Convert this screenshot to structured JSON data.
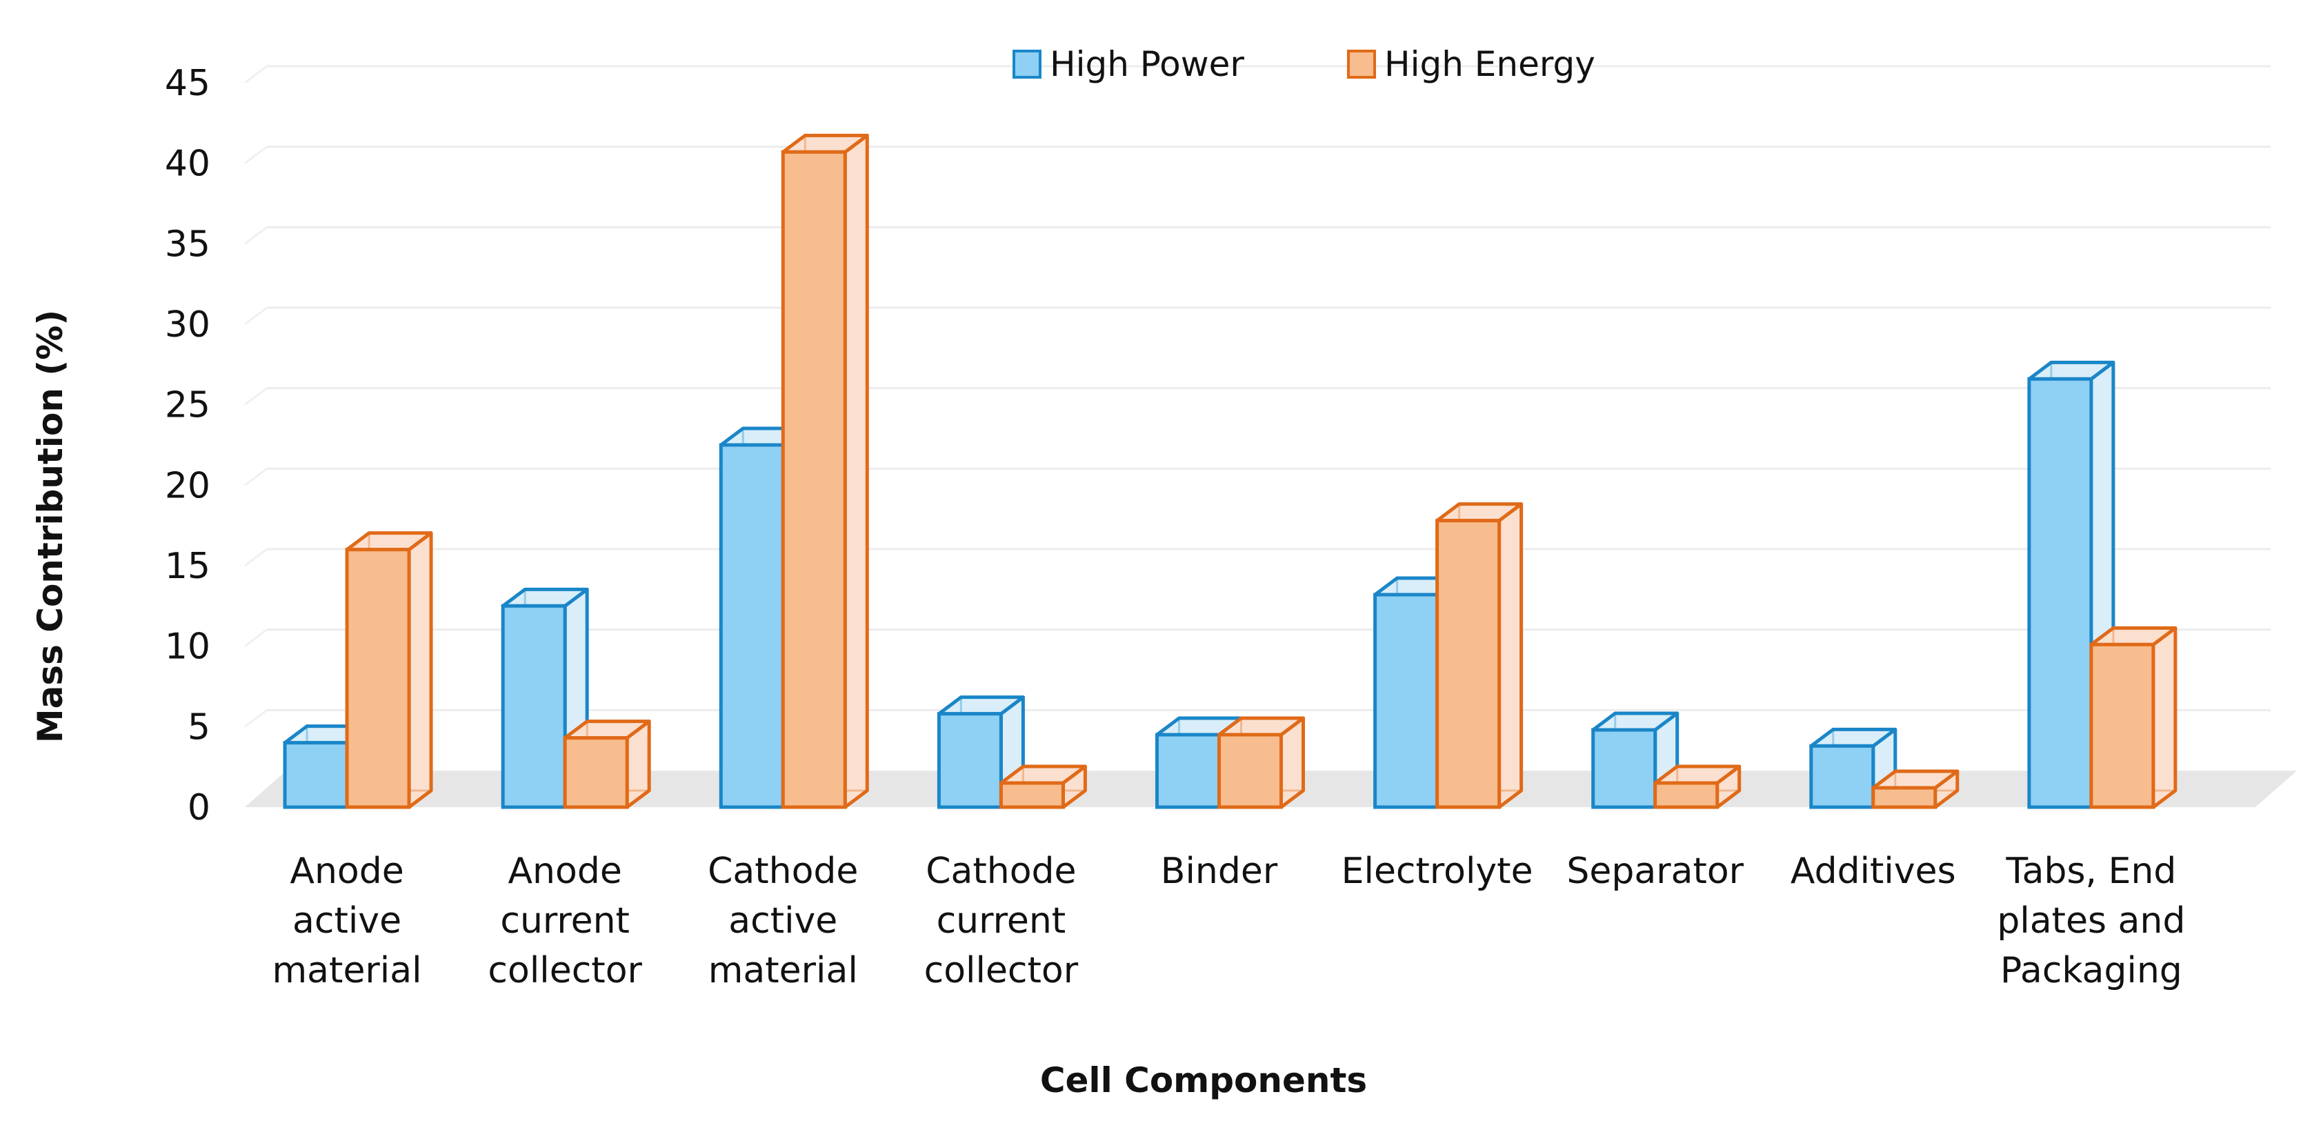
{
  "chart_data": {
    "type": "bar",
    "title": "",
    "xlabel": "Cell Components",
    "ylabel": "Mass Contribution (%)",
    "ylim": [
      0,
      45
    ],
    "yticks": [
      "0",
      "5",
      "10",
      "15",
      "20",
      "25",
      "30",
      "35",
      "40",
      "45"
    ],
    "grid": true,
    "legend_position": "top-center",
    "categories": [
      [
        "Anode",
        "active",
        "material"
      ],
      [
        "Anode",
        "current",
        "collector"
      ],
      [
        "Cathode",
        "active",
        "material"
      ],
      [
        "Cathode",
        "current",
        "collector"
      ],
      [
        "Binder"
      ],
      [
        "Electrolyte"
      ],
      [
        "Separator"
      ],
      [
        "Additives"
      ],
      [
        "Tabs, End",
        "plates and",
        "Packaging"
      ]
    ],
    "series": [
      {
        "name": "High Power",
        "fill": "#8fd0f5",
        "stroke": "#1a86c8",
        "side_fill": "#d9eef9",
        "values": [
          4,
          12.5,
          22.5,
          5.8,
          4.5,
          13.2,
          4.8,
          3.8,
          26.6
        ]
      },
      {
        "name": "High Energy",
        "fill": "#f8bd8e",
        "stroke": "#e06a18",
        "side_fill": "#fbe0d0",
        "values": [
          16,
          4.3,
          40.7,
          1.5,
          4.5,
          17.8,
          1.5,
          1.2,
          10.1
        ]
      }
    ]
  }
}
